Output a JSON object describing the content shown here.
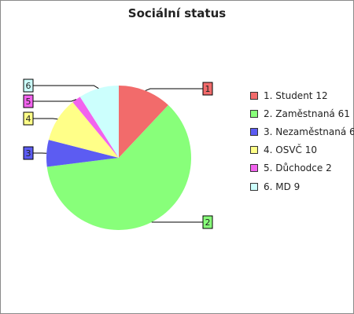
{
  "chart_data": {
    "type": "pie",
    "title": "Sociální status",
    "categories": [
      "Student",
      "Zaměstnaná",
      "Nezaměstnaná",
      "OSVČ",
      "Důchodce",
      "MD"
    ],
    "values": [
      12,
      61,
      6,
      10,
      2,
      9
    ],
    "labels": [
      "1",
      "2",
      "3",
      "4",
      "5",
      "6"
    ],
    "legend_labels": [
      "1. Student 12",
      "2. Zaměstnaná 61",
      "3. Nezaměstnaná 6",
      "4. OSVČ 10",
      "5. Důchodce 2",
      "6. MD 9"
    ],
    "colors": [
      "#f26b6b",
      "#88ff7a",
      "#5c5cf2",
      "#ffff88",
      "#f263ee",
      "#ccfffd"
    ],
    "legend_position": "right",
    "start": "top",
    "direction": "clockwise"
  }
}
